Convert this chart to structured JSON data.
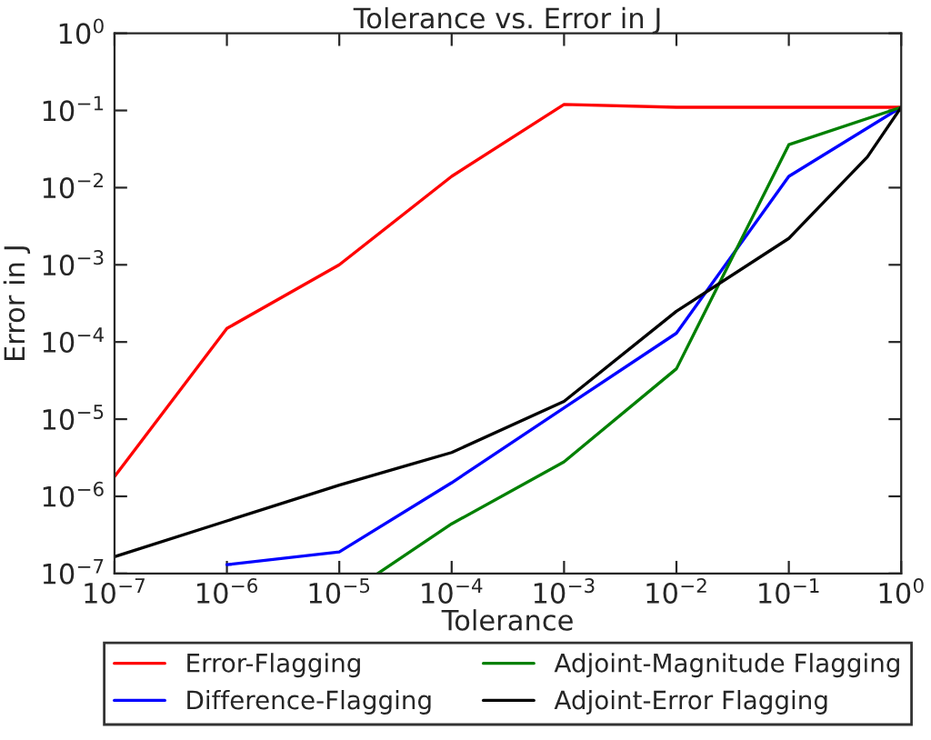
{
  "chart_data": {
    "type": "line",
    "title": "Tolerance vs. Error in J",
    "xlabel": "Tolerance",
    "ylabel": "Error in J",
    "log": "xy",
    "grid": false,
    "legend": "bottom",
    "xlim": [
      1e-07,
      1
    ],
    "ylim": [
      1e-07,
      1
    ],
    "xticks": [
      {
        "value": 1e-07,
        "label": "10$^{−7}$"
      },
      {
        "value": 1e-06,
        "label": "10$^{−6}$"
      },
      {
        "value": 1e-05,
        "label": "10$^{−5}$"
      },
      {
        "value": 0.0001,
        "label": "10$^{−4}$"
      },
      {
        "value": 0.001,
        "label": "10$^{−3}$"
      },
      {
        "value": 0.01,
        "label": "10$^{−2}$"
      },
      {
        "value": 0.1,
        "label": "10$^{−1}$"
      },
      {
        "value": 1,
        "label": "10$^{0}$"
      }
    ],
    "yticks": [
      {
        "value": 1e-07,
        "label": "10$^{−7}$"
      },
      {
        "value": 1e-06,
        "label": "10$^{−6}$"
      },
      {
        "value": 1e-05,
        "label": "10$^{−5}$"
      },
      {
        "value": 0.0001,
        "label": "10$^{−4}$"
      },
      {
        "value": 0.001,
        "label": "10$^{−3}$"
      },
      {
        "value": 0.01,
        "label": "10$^{−2}$"
      },
      {
        "value": 0.1,
        "label": "10$^{−1}$"
      },
      {
        "value": 1,
        "label": "10$^{0}$"
      }
    ],
    "series": [
      {
        "name": "Error-Flagging",
        "color": "#ff0000",
        "x": [
          1e-07,
          1e-06,
          1e-05,
          0.0001,
          0.001,
          0.01,
          0.1,
          1
        ],
        "values": [
          1.8e-06,
          0.00015,
          0.001,
          0.014,
          0.12,
          0.11,
          0.11,
          0.11
        ]
      },
      {
        "name": "Difference-Flagging",
        "color": "#0000ff",
        "x": [
          1e-06,
          1e-05,
          0.0001,
          0.001,
          0.01,
          0.1,
          1
        ],
        "values": [
          1.3e-07,
          1.9e-07,
          1.5e-06,
          1.4e-05,
          0.00013,
          0.014,
          0.11
        ]
      },
      {
        "name": "Adjoint-Magnitude Flagging",
        "color": "#008000",
        "x": [
          2.2e-05,
          0.0001,
          0.001,
          0.01,
          0.1,
          1
        ],
        "values": [
          1e-07,
          4.4e-07,
          2.8e-06,
          4.5e-05,
          0.036,
          0.11
        ]
      },
      {
        "name": "Adjoint-Error Flagging",
        "color": "#000000",
        "x": [
          1e-07,
          1e-06,
          1e-05,
          0.0001,
          0.001,
          0.01,
          0.1,
          0.5,
          1
        ],
        "values": [
          1.65e-07,
          4.8e-07,
          1.4e-06,
          3.7e-06,
          1.7e-05,
          0.00025,
          0.0022,
          0.025,
          0.11
        ]
      }
    ]
  }
}
